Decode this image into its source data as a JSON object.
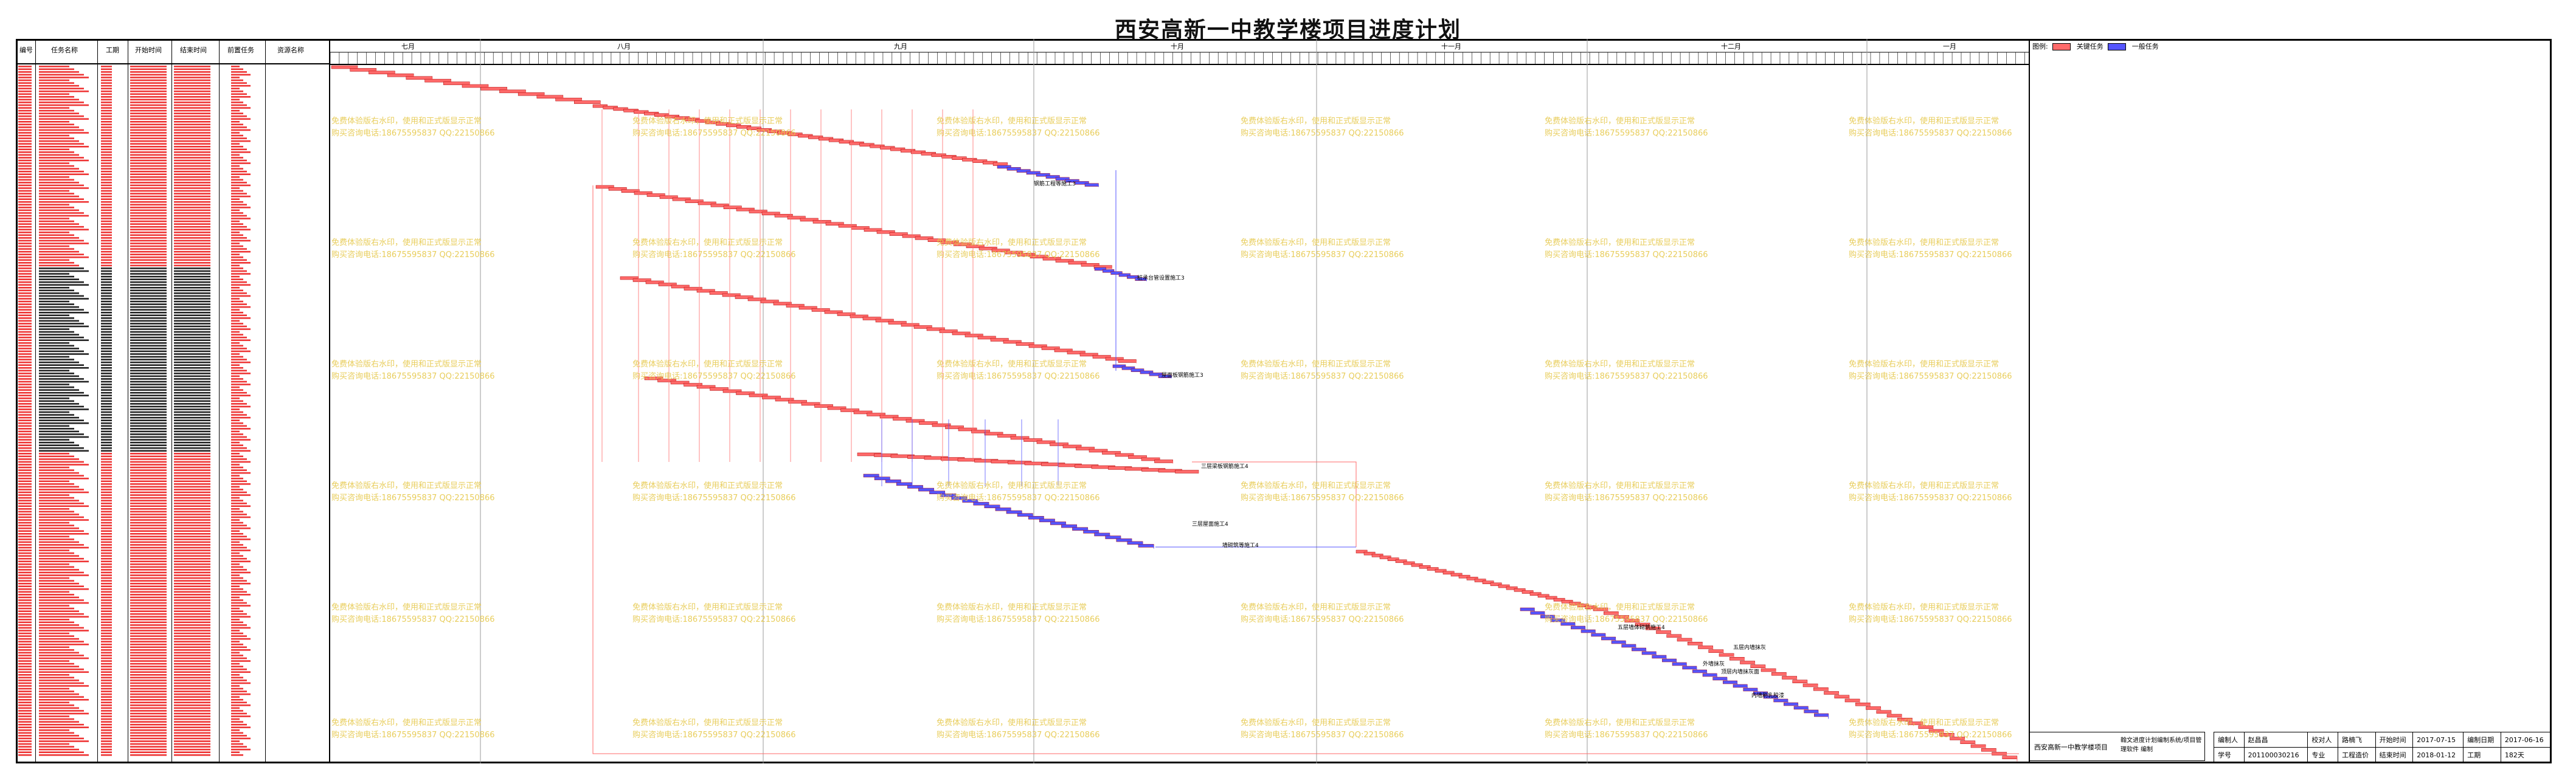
{
  "title": "西安高新一中教学楼项目进度计划",
  "table_headers": [
    "编号",
    "任务名称",
    "工期",
    "开始时间",
    "结束时间",
    "前置任务",
    "资源名称"
  ],
  "months": [
    "七月",
    "八月",
    "九月",
    "十月",
    "十一月",
    "十二月",
    "一月"
  ],
  "legend": {
    "label": "图例:",
    "critical": "关键任务",
    "normal": "一般任务",
    "critical_color": "#ff6a6a",
    "normal_color": "#5555ff"
  },
  "watermark": {
    "line1": "免费体验版右水印，使用和正式版显示正常",
    "line2": "购买咨询电话:18675595837 QQ:22150866"
  },
  "gantt_labels": [
    "钢筋工程等施工3",
    "桩承台管设置施工3",
    "屋面板钢筋施工3",
    "三层梁板钢筋施工4",
    "三层屋面施工4",
    "墙砌筑等施工4",
    "五层墙体砌筑施工4",
    "五层内墙抹灰",
    "外墙抹灰",
    "顶层内墙抹灰面",
    "内墙刷乳胶漆"
  ],
  "info": {
    "project": "西安高新一中教学楼项目",
    "software": "翰文进度计划编制系统/项目管理软件 编制",
    "editor_label": "编制人",
    "editor": "赵昌昌",
    "checker_label": "校对人",
    "checker": "路楠飞",
    "start_label": "开始时间",
    "start": "2017-07-15",
    "draw_date_label": "编制日期",
    "draw_date": "2017-06-16",
    "id_label": "学号",
    "id": "201100030216",
    "major_label": "专业",
    "major": "工程造价",
    "end_label": "结束时间",
    "end": "2018-01-12",
    "duration_label": "工期",
    "duration": "182天"
  }
}
